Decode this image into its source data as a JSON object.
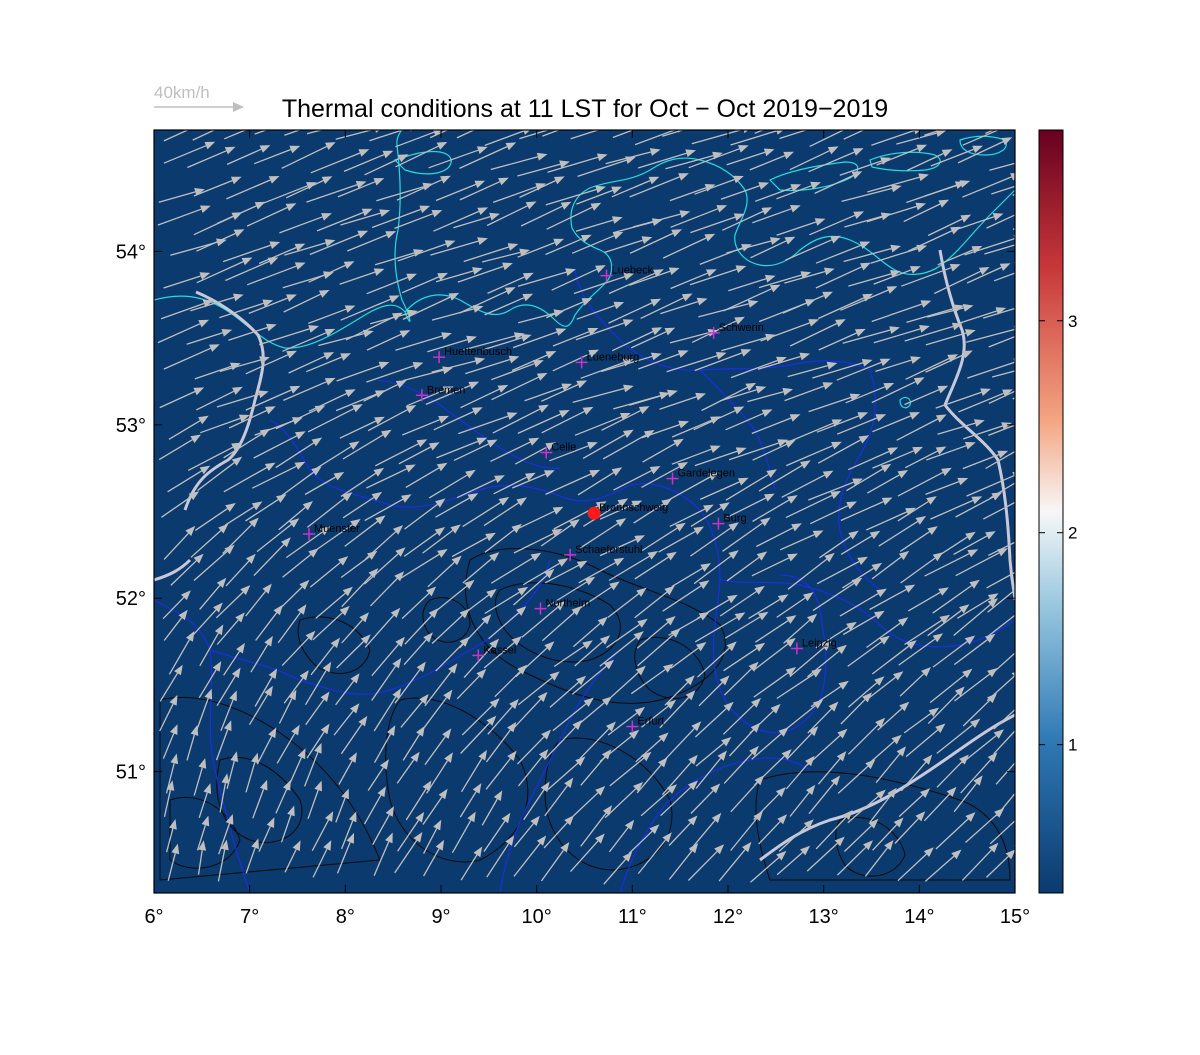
{
  "map": {
    "title": "Thermal conditions at 11 LST for Oct − Oct  2019−2019",
    "scale_arrow_label": "40km/h",
    "extent": {
      "lon": [
        6,
        15
      ],
      "lat": [
        50.3,
        54.7
      ]
    },
    "lon_ticks": [
      {
        "value": 6,
        "label": "6°"
      },
      {
        "value": 7,
        "label": "7°"
      },
      {
        "value": 8,
        "label": "8°"
      },
      {
        "value": 9,
        "label": "9°"
      },
      {
        "value": 10,
        "label": "10°"
      },
      {
        "value": 11,
        "label": "11°"
      },
      {
        "value": 12,
        "label": "12°"
      },
      {
        "value": 13,
        "label": "13°"
      },
      {
        "value": 14,
        "label": "14°"
      },
      {
        "value": 15,
        "label": "15°"
      }
    ],
    "lat_ticks": [
      {
        "value": 51,
        "label": "51°"
      },
      {
        "value": 52,
        "label": "52°"
      },
      {
        "value": 53,
        "label": "53°"
      },
      {
        "value": 54,
        "label": "54°"
      }
    ],
    "colors": {
      "background": "#0b3a6e",
      "wind_arrow": "#bfbfbf",
      "coastline": "#22dddd",
      "borders": "#1a2fe0",
      "terrain_contour": "#0a0a0a",
      "city_marker": "#cc33cc",
      "site_marker": "#ff1a1a",
      "city_label": "#000000"
    },
    "cities": [
      {
        "name": "Luebeck",
        "lon": 10.73,
        "lat": 53.86
      },
      {
        "name": "Schwerin",
        "lon": 11.85,
        "lat": 53.53
      },
      {
        "name": "Huettenbusch",
        "lon": 8.98,
        "lat": 53.39
      },
      {
        "name": "Lueneburg",
        "lon": 10.47,
        "lat": 53.36
      },
      {
        "name": "Bremen",
        "lon": 8.8,
        "lat": 53.17
      },
      {
        "name": "Celle",
        "lon": 10.1,
        "lat": 52.84
      },
      {
        "name": "Gardelegen",
        "lon": 11.42,
        "lat": 52.69
      },
      {
        "name": "Braunschweig",
        "lon": 10.6,
        "lat": 52.49
      },
      {
        "name": "Burg",
        "lon": 11.9,
        "lat": 52.43
      },
      {
        "name": "Muenster",
        "lon": 7.62,
        "lat": 52.37
      },
      {
        "name": "Schaeferstuhl",
        "lon": 10.35,
        "lat": 52.25
      },
      {
        "name": "Northeim",
        "lon": 10.04,
        "lat": 51.94
      },
      {
        "name": "Kassel",
        "lon": 9.39,
        "lat": 51.67
      },
      {
        "name": "Leipzig",
        "lon": 12.72,
        "lat": 51.71
      },
      {
        "name": "Erfurt",
        "lon": 11.0,
        "lat": 51.26
      }
    ],
    "site": {
      "name": "Braunschweig",
      "lon": 10.6,
      "lat": 52.49
    }
  },
  "colorbar": {
    "ticks": [
      {
        "value": 1,
        "label": "1"
      },
      {
        "value": 2,
        "label": "2"
      },
      {
        "value": 3,
        "label": "3"
      }
    ],
    "range": [
      0.3,
      3.9
    ],
    "colors": [
      "#0b3a6e",
      "#2f79b5",
      "#9ac8e0",
      "#f7f7f7",
      "#f4a582",
      "#c7373a",
      "#67001f"
    ]
  },
  "wind_field": {
    "unit": "km/h",
    "reference_speed": 40,
    "north_direction_deg": 70,
    "north_speed": 45,
    "south_direction_deg": 10,
    "south_speed": 30
  }
}
